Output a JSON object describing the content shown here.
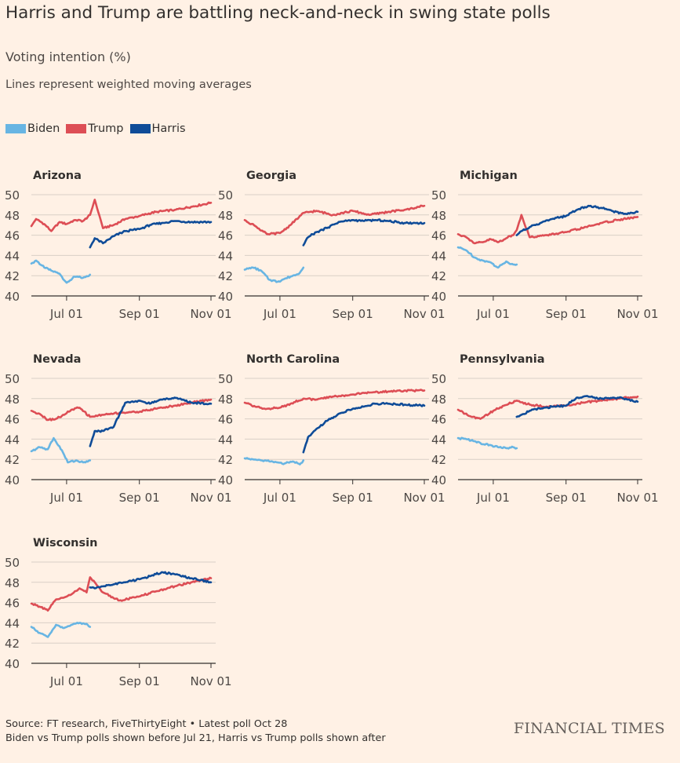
{
  "title": "Harris and Trump are battling neck-and-neck in swing state polls",
  "subtitle": "Voting intention (%)",
  "note": "Lines represent weighted moving averages",
  "legend": [
    {
      "label": "Biden",
      "color": "#68b5e3"
    },
    {
      "label": "Trump",
      "color": "#dd4e55"
    },
    {
      "label": "Harris",
      "color": "#0f4c98"
    }
  ],
  "footer": {
    "source": "Source: FT research, FiveThirtyEight • Latest poll Oct 28",
    "note2": "Biden vs Trump polls shown before Jul 21, Harris vs Trump polls shown after"
  },
  "brand": "FINANCIAL TIMES",
  "chart_data": [
    {
      "type": "line",
      "title": "Arizona",
      "x_ticks": [
        "Jul 01",
        "Sep 01",
        "Nov 01"
      ],
      "ylim": [
        40,
        50
      ],
      "y_ticks": [
        40,
        42,
        44,
        46,
        48,
        50
      ],
      "series": [
        {
          "name": "Biden",
          "x": [
            "Jun 01",
            "Jun 05",
            "Jun 12",
            "Jun 18",
            "Jun 25",
            "Jul 01",
            "Jul 08",
            "Jul 15",
            "Jul 21"
          ],
          "values": [
            43.2,
            43.5,
            42.8,
            42.5,
            42.2,
            41.3,
            41.9,
            41.8,
            42.1
          ]
        },
        {
          "name": "Trump",
          "x": [
            "Jun 01",
            "Jun 05",
            "Jun 12",
            "Jun 18",
            "Jun 25",
            "Jul 01",
            "Jul 08",
            "Jul 15",
            "Jul 21",
            "Jul 25",
            "Aug 01",
            "Aug 10",
            "Aug 20",
            "Sep 01",
            "Sep 15",
            "Oct 01",
            "Oct 15",
            "Nov 01"
          ],
          "values": [
            46.9,
            47.6,
            47.1,
            46.4,
            47.3,
            47.1,
            47.5,
            47.4,
            48.0,
            49.5,
            46.7,
            47.0,
            47.6,
            47.9,
            48.3,
            48.5,
            48.8,
            49.2
          ]
        },
        {
          "name": "Harris",
          "x": [
            "Jul 21",
            "Jul 25",
            "Aug 01",
            "Aug 10",
            "Aug 20",
            "Sep 01",
            "Sep 10",
            "Sep 20",
            "Oct 01",
            "Oct 15",
            "Nov 01"
          ],
          "values": [
            44.8,
            45.7,
            45.2,
            45.9,
            46.4,
            46.6,
            47.0,
            47.2,
            47.4,
            47.3,
            47.3
          ]
        }
      ]
    },
    {
      "type": "line",
      "title": "Georgia",
      "x_ticks": [
        "Jul 01",
        "Sep 01",
        "Nov 01"
      ],
      "ylim": [
        40,
        50
      ],
      "y_ticks": [
        40,
        42,
        44,
        46,
        48,
        50
      ],
      "series": [
        {
          "name": "Biden",
          "x": [
            "Jun 01",
            "Jun 08",
            "Jun 15",
            "Jun 22",
            "Jun 29",
            "Jul 05",
            "Jul 12",
            "Jul 18",
            "Jul 21"
          ],
          "values": [
            42.6,
            42.8,
            42.5,
            41.6,
            41.4,
            41.7,
            42.0,
            42.3,
            42.8
          ]
        },
        {
          "name": "Trump",
          "x": [
            "Jun 01",
            "Jun 10",
            "Jun 20",
            "Jul 01",
            "Jul 10",
            "Jul 21",
            "Aug 01",
            "Aug 15",
            "Sep 01",
            "Sep 15",
            "Oct 01",
            "Oct 15",
            "Nov 01"
          ],
          "values": [
            47.5,
            46.9,
            46.1,
            46.2,
            47.0,
            48.2,
            48.4,
            48.0,
            48.4,
            48.0,
            48.3,
            48.5,
            48.9
          ]
        },
        {
          "name": "Harris",
          "x": [
            "Jul 21",
            "Jul 25",
            "Aug 01",
            "Aug 10",
            "Aug 20",
            "Sep 01",
            "Sep 10",
            "Sep 20",
            "Oct 01",
            "Oct 15",
            "Nov 01"
          ],
          "values": [
            45.0,
            45.8,
            46.3,
            46.7,
            47.3,
            47.5,
            47.4,
            47.5,
            47.4,
            47.2,
            47.2
          ]
        }
      ]
    },
    {
      "type": "line",
      "title": "Michigan",
      "x_ticks": [
        "Jul 01",
        "Sep 01",
        "Nov 01"
      ],
      "ylim": [
        40,
        50
      ],
      "y_ticks": [
        40,
        42,
        44,
        46,
        48,
        50
      ],
      "series": [
        {
          "name": "Biden",
          "x": [
            "Jun 01",
            "Jun 08",
            "Jun 15",
            "Jun 22",
            "Jun 29",
            "Jul 05",
            "Jul 12",
            "Jul 18",
            "Jul 21"
          ],
          "values": [
            44.8,
            44.5,
            43.8,
            43.5,
            43.3,
            42.8,
            43.4,
            43.1,
            43.1
          ]
        },
        {
          "name": "Trump",
          "x": [
            "Jun 01",
            "Jun 08",
            "Jun 15",
            "Jun 22",
            "Jun 29",
            "Jul 05",
            "Jul 12",
            "Jul 18",
            "Jul 21",
            "Jul 25",
            "Aug 01",
            "Aug 15",
            "Sep 01",
            "Sep 15",
            "Oct 01",
            "Oct 15",
            "Nov 01"
          ],
          "values": [
            46.1,
            45.8,
            45.2,
            45.3,
            45.6,
            45.3,
            45.7,
            46.0,
            46.5,
            48.0,
            45.8,
            46.0,
            46.3,
            46.7,
            47.2,
            47.5,
            47.8
          ]
        },
        {
          "name": "Harris",
          "x": [
            "Jul 21",
            "Jul 25",
            "Aug 01",
            "Aug 10",
            "Aug 20",
            "Sep 01",
            "Sep 10",
            "Sep 20",
            "Oct 01",
            "Oct 10",
            "Oct 20",
            "Nov 01"
          ],
          "values": [
            46.0,
            46.4,
            46.8,
            47.2,
            47.6,
            47.9,
            48.5,
            48.9,
            48.7,
            48.4,
            48.1,
            48.3
          ]
        }
      ]
    },
    {
      "type": "line",
      "title": "Nevada",
      "x_ticks": [
        "Jul 01",
        "Sep 01",
        "Nov 01"
      ],
      "ylim": [
        40,
        50
      ],
      "y_ticks": [
        40,
        42,
        44,
        46,
        48,
        50
      ],
      "series": [
        {
          "name": "Biden",
          "x": [
            "Jun 01",
            "Jun 08",
            "Jun 15",
            "Jun 20",
            "Jun 27",
            "Jul 02",
            "Jul 09",
            "Jul 15",
            "Jul 21"
          ],
          "values": [
            42.8,
            43.2,
            43.0,
            44.1,
            42.9,
            41.7,
            41.9,
            41.7,
            41.9
          ]
        },
        {
          "name": "Trump",
          "x": [
            "Jun 01",
            "Jun 08",
            "Jun 15",
            "Jun 22",
            "Jun 29",
            "Jul 05",
            "Jul 12",
            "Jul 21",
            "Aug 01",
            "Aug 15",
            "Sep 01",
            "Sep 15",
            "Oct 01",
            "Oct 15",
            "Nov 01"
          ],
          "values": [
            46.8,
            46.5,
            45.9,
            46.0,
            46.4,
            46.9,
            47.1,
            46.2,
            46.4,
            46.6,
            46.7,
            47.0,
            47.3,
            47.6,
            47.9
          ]
        },
        {
          "name": "Harris",
          "x": [
            "Jul 21",
            "Jul 25",
            "Aug 01",
            "Aug 10",
            "Aug 20",
            "Sep 01",
            "Sep 10",
            "Sep 20",
            "Oct 01",
            "Oct 15",
            "Nov 01"
          ],
          "values": [
            43.3,
            44.8,
            44.8,
            45.2,
            47.6,
            47.8,
            47.5,
            47.9,
            48.1,
            47.6,
            47.5
          ]
        }
      ]
    },
    {
      "type": "line",
      "title": "North Carolina",
      "x_ticks": [
        "Jul 01",
        "Sep 01",
        "Nov 01"
      ],
      "ylim": [
        40,
        50
      ],
      "y_ticks": [
        40,
        42,
        44,
        46,
        48,
        50
      ],
      "series": [
        {
          "name": "Biden",
          "x": [
            "Jun 01",
            "Jun 08",
            "Jun 15",
            "Jun 22",
            "Jun 29",
            "Jul 05",
            "Jul 12",
            "Jul 18",
            "Jul 21"
          ],
          "values": [
            42.1,
            42.0,
            41.9,
            41.8,
            41.7,
            41.6,
            41.8,
            41.5,
            41.9
          ]
        },
        {
          "name": "Trump",
          "x": [
            "Jun 01",
            "Jun 10",
            "Jun 20",
            "Jul 01",
            "Jul 10",
            "Jul 21",
            "Aug 01",
            "Aug 15",
            "Sep 01",
            "Sep 15",
            "Oct 01",
            "Oct 15",
            "Nov 01"
          ],
          "values": [
            47.6,
            47.2,
            47.0,
            47.1,
            47.5,
            48.0,
            47.9,
            48.2,
            48.4,
            48.6,
            48.7,
            48.8,
            48.8
          ]
        },
        {
          "name": "Harris",
          "x": [
            "Jul 21",
            "Jul 25",
            "Aug 01",
            "Aug 10",
            "Aug 20",
            "Sep 01",
            "Sep 10",
            "Sep 20",
            "Oct 01",
            "Oct 15",
            "Nov 01"
          ],
          "values": [
            42.7,
            44.2,
            45.0,
            45.8,
            46.5,
            47.0,
            47.2,
            47.5,
            47.5,
            47.4,
            47.3
          ]
        }
      ]
    },
    {
      "type": "line",
      "title": "Pennsylvania",
      "x_ticks": [
        "Jul 01",
        "Sep 01",
        "Nov 01"
      ],
      "ylim": [
        40,
        50
      ],
      "y_ticks": [
        40,
        42,
        44,
        46,
        48,
        50
      ],
      "series": [
        {
          "name": "Biden",
          "x": [
            "Jun 01",
            "Jun 08",
            "Jun 15",
            "Jun 22",
            "Jun 29",
            "Jul 05",
            "Jul 12",
            "Jul 18",
            "Jul 21"
          ],
          "values": [
            44.1,
            44.0,
            43.8,
            43.5,
            43.4,
            43.2,
            43.1,
            43.2,
            43.1
          ]
        },
        {
          "name": "Trump",
          "x": [
            "Jun 01",
            "Jun 10",
            "Jun 20",
            "Jul 01",
            "Jul 10",
            "Jul 21",
            "Aug 01",
            "Aug 15",
            "Sep 01",
            "Sep 15",
            "Oct 01",
            "Oct 15",
            "Nov 01"
          ],
          "values": [
            46.9,
            46.3,
            46.0,
            46.8,
            47.3,
            47.8,
            47.4,
            47.2,
            47.3,
            47.6,
            47.8,
            48.0,
            48.2
          ]
        },
        {
          "name": "Harris",
          "x": [
            "Jul 21",
            "Jul 25",
            "Aug 01",
            "Aug 10",
            "Aug 20",
            "Sep 01",
            "Sep 10",
            "Sep 20",
            "Oct 01",
            "Oct 15",
            "Nov 01"
          ],
          "values": [
            46.2,
            46.4,
            46.8,
            47.0,
            47.2,
            47.3,
            48.1,
            48.2,
            48.0,
            48.1,
            47.7
          ]
        }
      ]
    },
    {
      "type": "line",
      "title": "Wisconsin",
      "x_ticks": [
        "Jul 01",
        "Sep 01",
        "Nov 01"
      ],
      "ylim": [
        40,
        50
      ],
      "y_ticks": [
        40,
        42,
        44,
        46,
        48,
        50
      ],
      "series": [
        {
          "name": "Biden",
          "x": [
            "Jun 01",
            "Jun 08",
            "Jun 15",
            "Jun 22",
            "Jun 29",
            "Jul 05",
            "Jul 12",
            "Jul 18",
            "Jul 21"
          ],
          "values": [
            43.6,
            43.0,
            42.6,
            43.8,
            43.5,
            43.8,
            44.0,
            43.9,
            43.6
          ]
        },
        {
          "name": "Trump",
          "x": [
            "Jun 01",
            "Jun 08",
            "Jun 15",
            "Jun 22",
            "Jun 29",
            "Jul 05",
            "Jul 12",
            "Jul 18",
            "Jul 21",
            "Aug 01",
            "Aug 15",
            "Sep 01",
            "Sep 15",
            "Oct 01",
            "Oct 15",
            "Nov 01"
          ],
          "values": [
            45.9,
            45.6,
            45.2,
            46.3,
            46.5,
            46.8,
            47.4,
            47.0,
            48.5,
            47.0,
            46.2,
            46.6,
            47.1,
            47.6,
            48.0,
            48.4
          ]
        },
        {
          "name": "Harris",
          "x": [
            "Jul 21",
            "Jul 25",
            "Aug 01",
            "Aug 10",
            "Aug 20",
            "Sep 01",
            "Sep 10",
            "Sep 20",
            "Oct 01",
            "Oct 15",
            "Nov 01"
          ],
          "values": [
            47.5,
            47.4,
            47.6,
            47.8,
            48.0,
            48.3,
            48.6,
            49.0,
            48.8,
            48.4,
            48.0
          ]
        }
      ]
    }
  ]
}
